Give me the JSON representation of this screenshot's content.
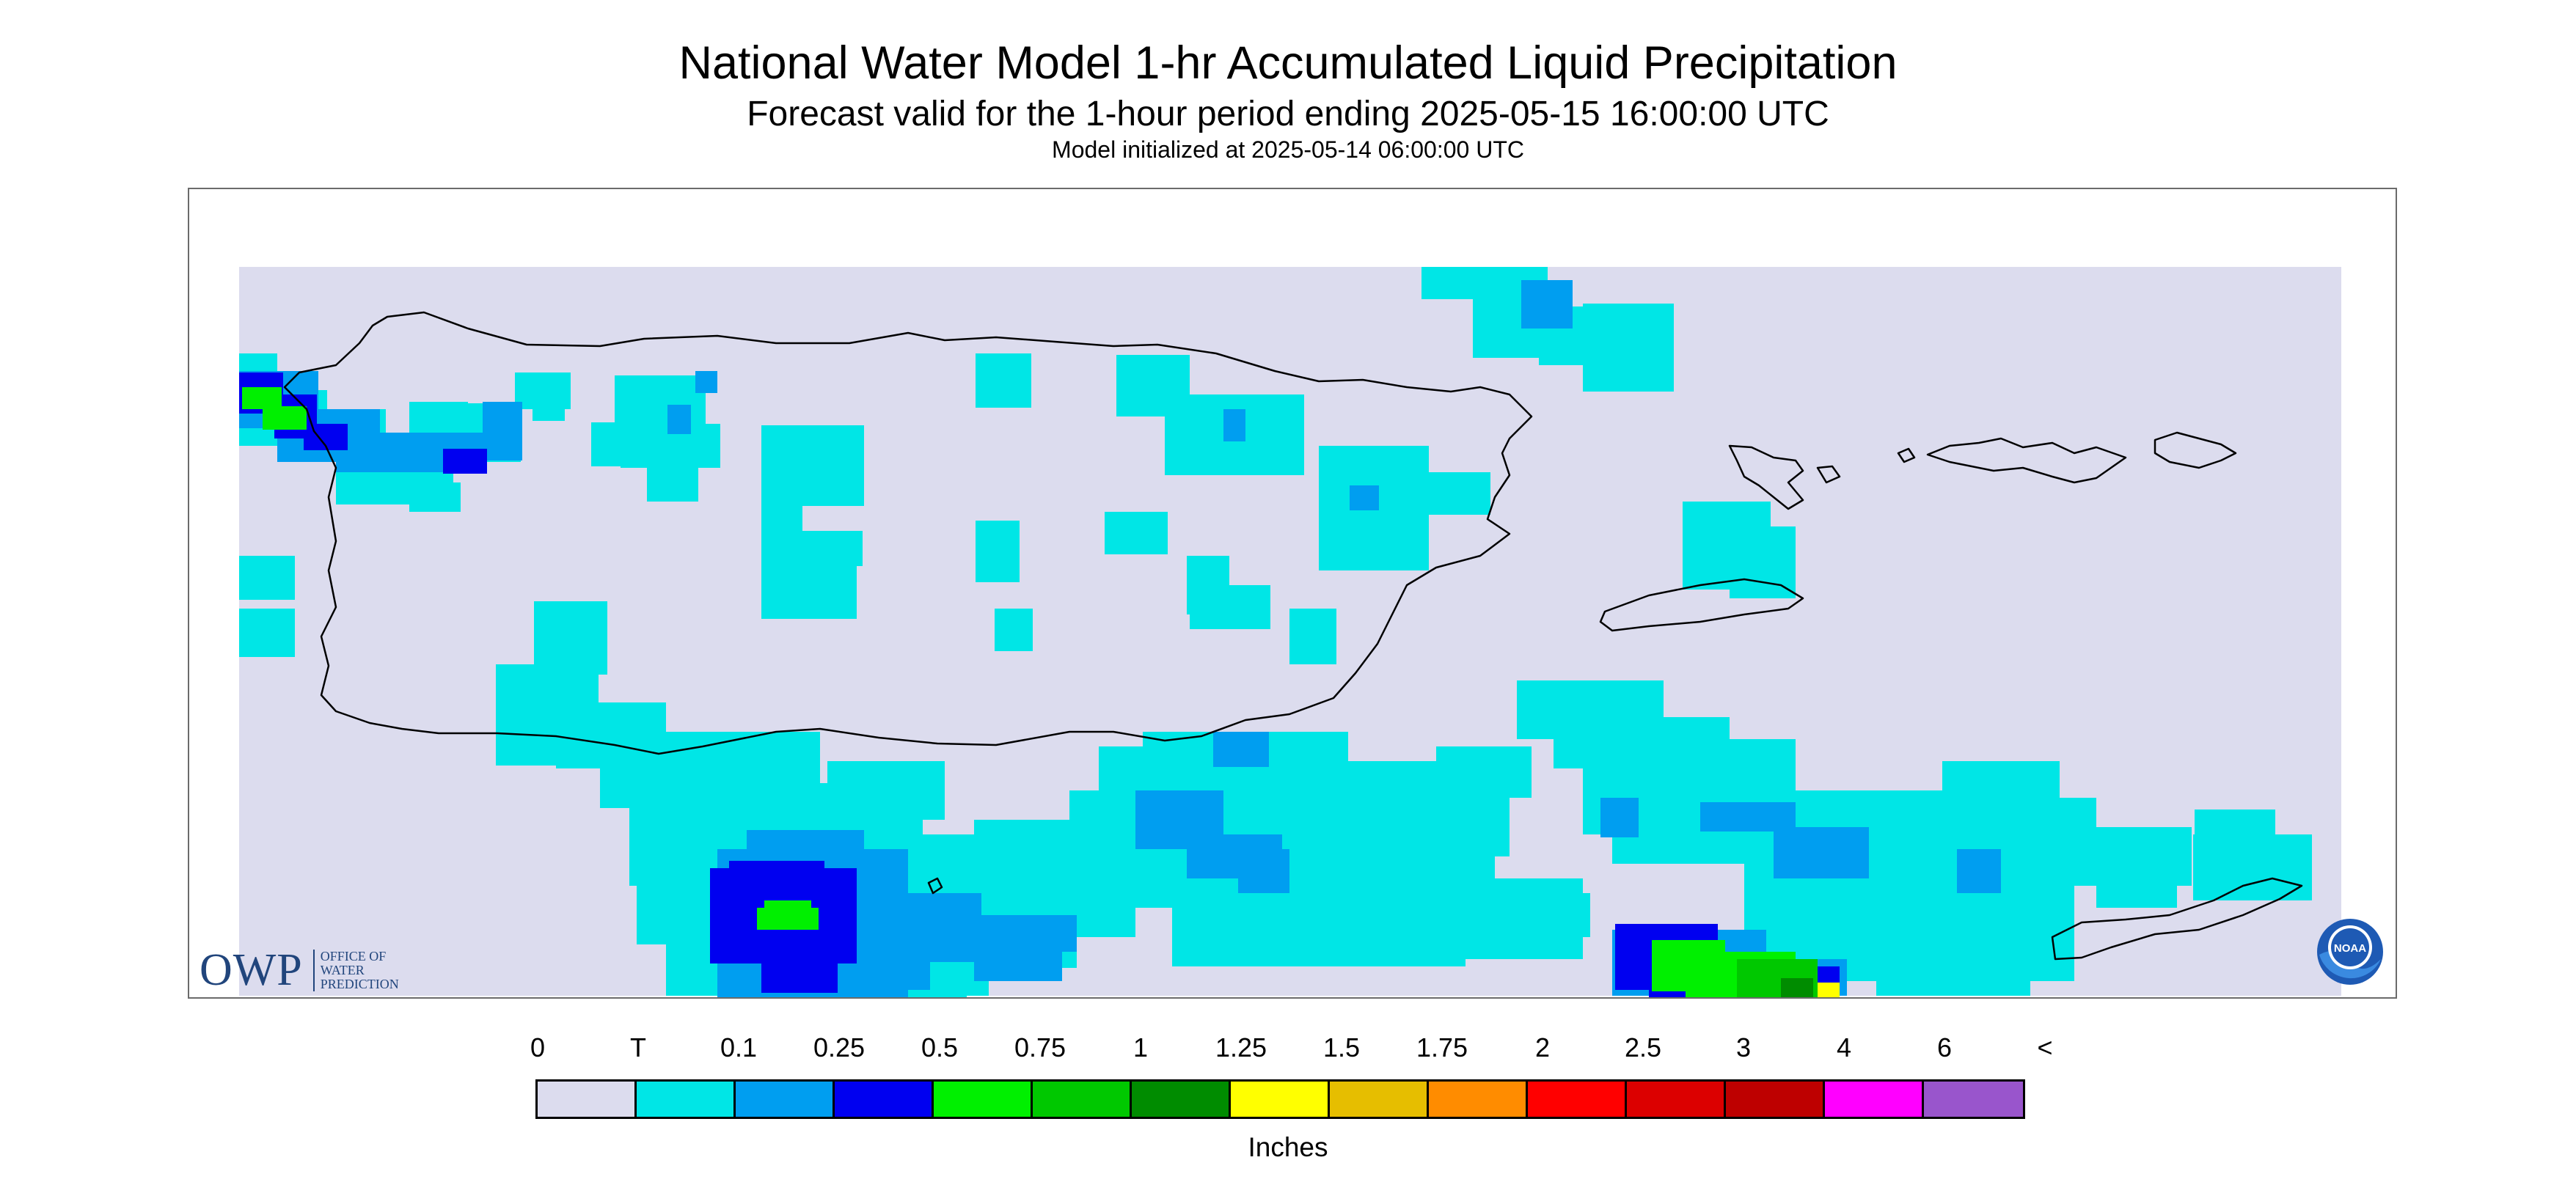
{
  "header": {
    "title": "National Water Model 1-hr Accumulated Liquid Precipitation",
    "subtitle": "Forecast valid for the 1-hour period ending 2025-05-15 16:00:00 UTC",
    "init": "Model initialized at 2025-05-14 06:00:00 UTC"
  },
  "legend": {
    "labels": [
      "0",
      "T",
      "0.1",
      "0.25",
      "0.5",
      "0.75",
      "1",
      "1.25",
      "1.5",
      "1.75",
      "2",
      "2.5",
      "3",
      "4",
      "6",
      "<"
    ],
    "colors": [
      "#dcdcee",
      "#00e6e6",
      "#009ef0",
      "#0000f0",
      "#00f000",
      "#00c800",
      "#008c00",
      "#ffff00",
      "#e6be00",
      "#ff8c00",
      "#ff0000",
      "#dc0000",
      "#be0000",
      "#ff00ff",
      "#9955cc"
    ],
    "units": "Inches"
  },
  "logos": {
    "owp_letters": "OWP",
    "owp_sub": [
      "OFFICE OF",
      "WATER",
      "PREDICTION"
    ],
    "noaa": "NOAA"
  },
  "colors": {
    "no_precip": "#dcdcee",
    "trace": "#00e6e6",
    "p01": "#009ef0",
    "p025": "#0000f0",
    "p05": "#00f000",
    "p075": "#00c800",
    "p1": "#008c00",
    "p125": "#ffff00",
    "coastline": "#000000"
  }
}
